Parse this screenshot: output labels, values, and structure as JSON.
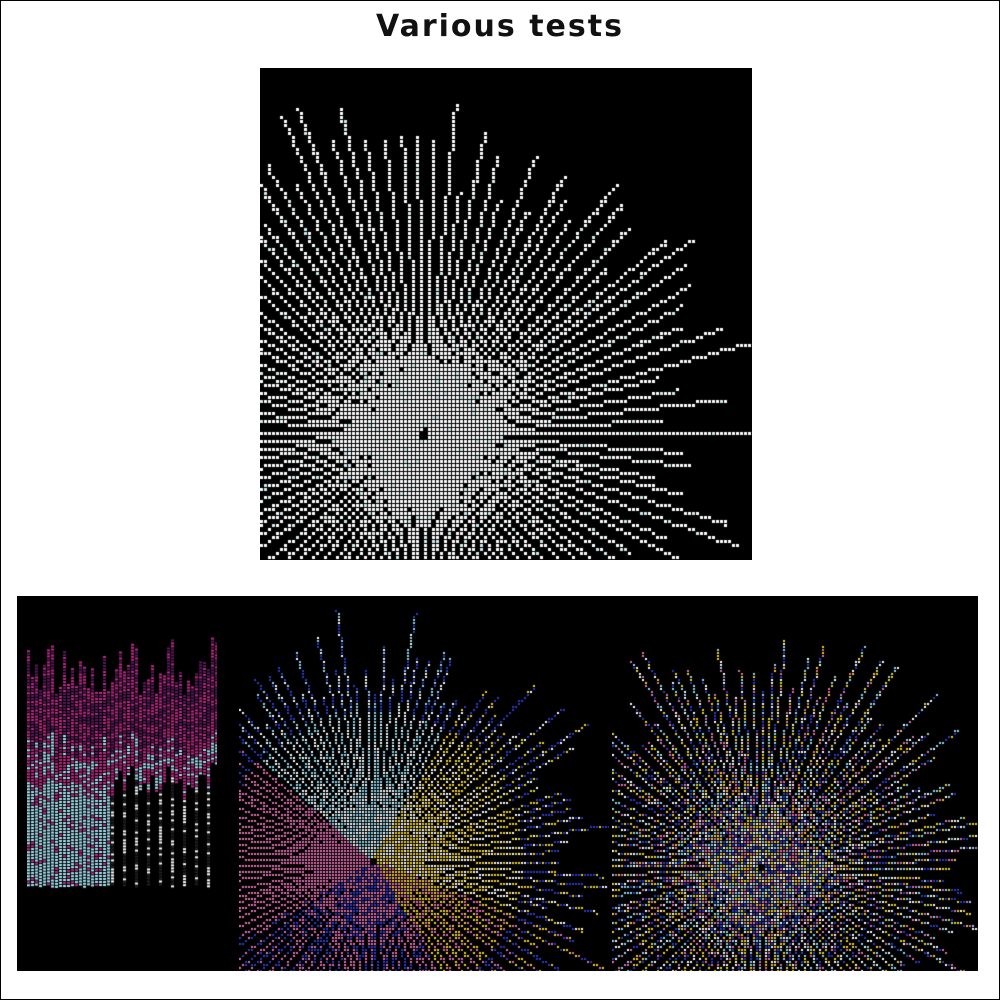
{
  "header": {
    "title": "Various tests"
  },
  "figures": [
    {
      "name": "starburst-white",
      "style": "white rays with faint cyan tint, 100 rays",
      "colors": [
        "#ffffff",
        "#cfeeee"
      ]
    },
    {
      "name": "vertical-streaks",
      "style": "vertical line bars, magenta to light-blue",
      "colors": [
        "#5a1a5e",
        "#c02a8a",
        "#a9e5f5",
        "#ffffff"
      ]
    },
    {
      "name": "starburst-colored",
      "style": "rays in blue / pink / cyan / yellow / white sectors",
      "colors": [
        "#2b3bc8",
        "#e070b0",
        "#8fd8ee",
        "#f2d020",
        "#ffffff"
      ]
    },
    {
      "name": "starburst-mixed",
      "style": "rays with randomly mixed colors",
      "colors": [
        "#2b3bc8",
        "#ffffff",
        "#f2d020",
        "#e070b0",
        "#8fd8ee"
      ]
    }
  ]
}
